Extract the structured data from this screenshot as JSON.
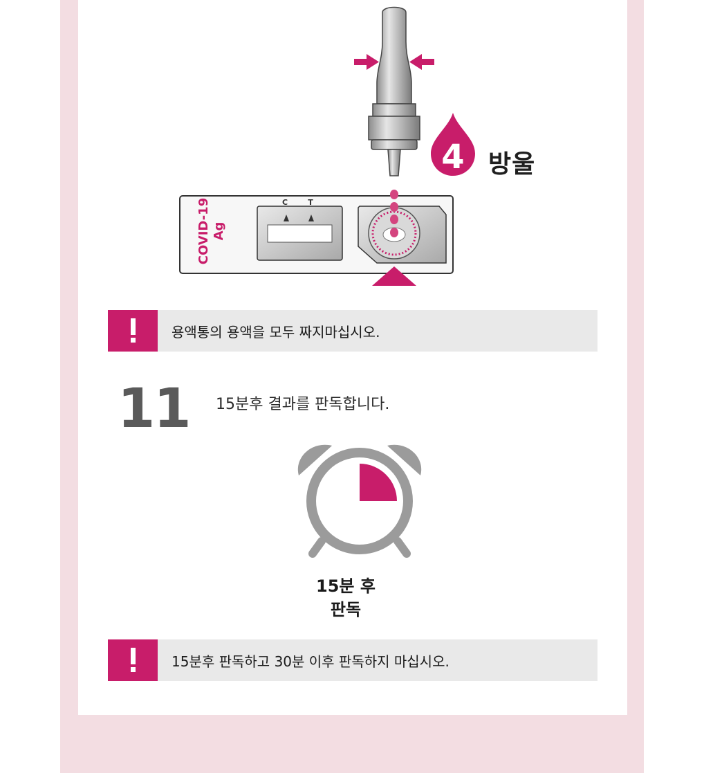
{
  "step10": {
    "drops_number": "4",
    "drops_label": "방울",
    "cassette": {
      "brand": "COVID-19",
      "sub": "Ag",
      "control_mark": "C",
      "test_mark": "T"
    }
  },
  "warning1": {
    "text": "용액통의 용액을 모두 짜지마십시오."
  },
  "step11": {
    "number": "11",
    "instruction": "15분후 결과를 판독합니다.",
    "clock_caption_line1": "15분 후",
    "clock_caption_line2": "판독"
  },
  "warning2": {
    "text": "15분후 판독하고 30분 이후 판독하지 마십시오."
  },
  "colors": {
    "accent": "#c81d6a",
    "panel_pink": "#f3dde2",
    "warn_bg": "#e9e9e9",
    "clock_gray": "#9b9b9b"
  }
}
